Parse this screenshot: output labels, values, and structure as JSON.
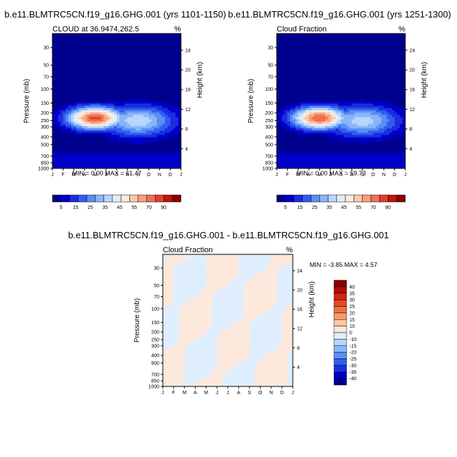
{
  "chart_data": [
    {
      "type": "heatmap",
      "id": "p1",
      "title": "b.e11.BLMTRC5CN.f19_g16.GHG.001 (yrs 1101-1150)",
      "subtitle_left": "CLOUD at 36.9474,262.5",
      "subtitle_right": "%",
      "ylabel": "Pressure (mb)",
      "ylabel_right": "Height (km)",
      "x_ticks": [
        "J",
        "F",
        "M",
        "A",
        "M",
        "J",
        "J",
        "A",
        "S",
        "O",
        "N",
        "D",
        "J"
      ],
      "y_ticks": [
        "30",
        "50",
        "70",
        "100",
        "150",
        "200",
        "250",
        "300",
        "400",
        "500",
        "700",
        "850",
        "1000"
      ],
      "y_ticks_right": [
        "24",
        "20",
        "16",
        "12",
        "8",
        "4"
      ],
      "minmax_text": "MIN =  0.00 MAX =  61.47",
      "peak": {
        "month": 4.0,
        "pressure": 230,
        "value": 61.47
      },
      "colorbar": {
        "levels": [
          "5",
          "15",
          "25",
          "35",
          "45",
          "55",
          "70",
          "90"
        ]
      }
    },
    {
      "type": "heatmap",
      "id": "p2",
      "title": "b.e11.BLMTRC5CN.f19_g16.GHG.001 (yrs 1251-1300)",
      "subtitle_left": "Cloud Fraction",
      "subtitle_right": "%",
      "ylabel": "Pressure (mb)",
      "ylabel_right": "Height (km)",
      "x_ticks": [
        "J",
        "F",
        "M",
        "A",
        "M",
        "J",
        "J",
        "A",
        "S",
        "O",
        "N",
        "D",
        "J"
      ],
      "y_ticks": [
        "30",
        "50",
        "70",
        "100",
        "150",
        "200",
        "250",
        "300",
        "400",
        "500",
        "700",
        "850",
        "1000"
      ],
      "y_ticks_right": [
        "24",
        "20",
        "16",
        "12",
        "8",
        "4"
      ],
      "minmax_text": "MIN =  0.00 MAX =  59.73",
      "peak": {
        "month": 4.0,
        "pressure": 230,
        "value": 59.73
      },
      "colorbar": {
        "levels": [
          "5",
          "15",
          "25",
          "35",
          "45",
          "55",
          "70",
          "90"
        ]
      }
    },
    {
      "type": "heatmap",
      "id": "p3",
      "title": "b.e11.BLMTRC5CN.f19_g16.GHG.001 - b.e11.BLMTRC5CN.f19_g16.GHG.001",
      "subtitle_left": "Cloud Fraction",
      "subtitle_right": "%",
      "ylabel": "Pressure (mb)",
      "ylabel_right": "Height (km)",
      "x_ticks": [
        "J",
        "F",
        "M",
        "A",
        "M",
        "J",
        "J",
        "A",
        "S",
        "O",
        "N",
        "D",
        "J"
      ],
      "y_ticks": [
        "30",
        "50",
        "70",
        "100",
        "150",
        "200",
        "250",
        "300",
        "400",
        "500",
        "700",
        "850",
        "1000"
      ],
      "y_ticks_right": [
        "24",
        "20",
        "16",
        "12",
        "8",
        "4"
      ],
      "minmax_text": "MIN =  -3.85 MAX =   4.57",
      "colorbar": {
        "levels": [
          "40",
          "35",
          "30",
          "25",
          "20",
          "15",
          "10",
          "0",
          "-10",
          "-15",
          "-20",
          "-25",
          "-30",
          "-35",
          "-40"
        ]
      }
    }
  ],
  "colors": {
    "seq": [
      "#00008f",
      "#0000c8",
      "#1a2ee0",
      "#2f5ff0",
      "#5b8ef5",
      "#8ab5f9",
      "#b8d6fc",
      "#dfeefe",
      "#fde9dc",
      "#fcc8a8",
      "#f9a07d",
      "#f26f52",
      "#e23e2a",
      "#c0160e",
      "#8a0000"
    ],
    "div": [
      "#8a0000",
      "#b30a05",
      "#d42410",
      "#e84a22",
      "#f27040",
      "#f99a6a",
      "#fcc8a8",
      "#fde9dc",
      "#dfeefe",
      "#b8d6fc",
      "#8ab5f9",
      "#5b8ef5",
      "#2f5ff0",
      "#1a2ee0",
      "#0000c8",
      "#00008f"
    ]
  }
}
